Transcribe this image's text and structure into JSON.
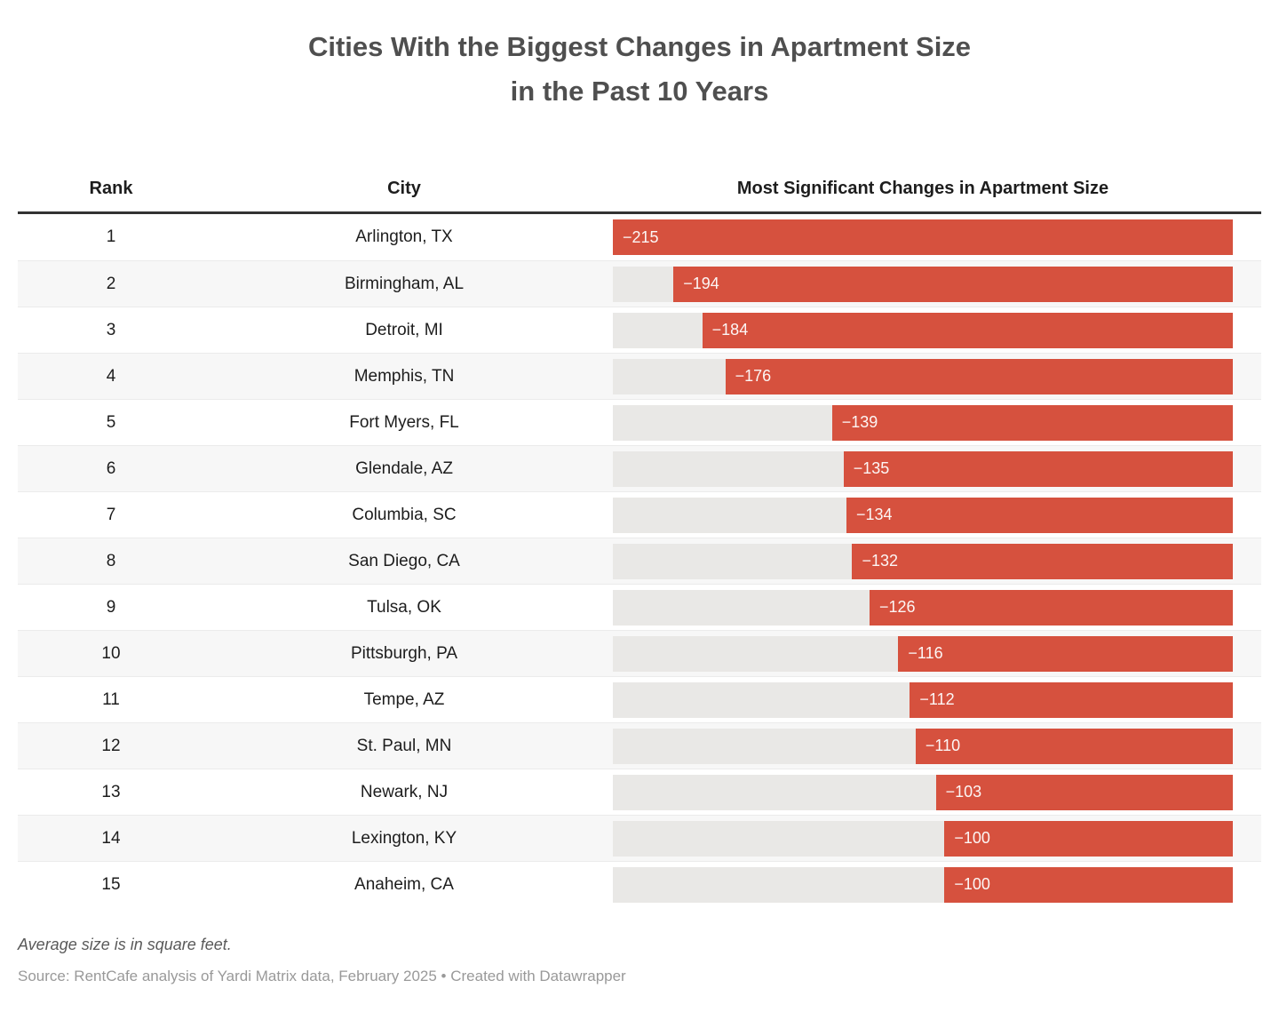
{
  "title": {
    "line1": "Cities With the Biggest Changes in Apartment Size",
    "line2": "in the Past 10 Years"
  },
  "table": {
    "columns": [
      "Rank",
      "City",
      "Most Significant Changes in Apartment Size"
    ],
    "rows": [
      {
        "rank": "1",
        "city": "Arlington, TX",
        "value": -215,
        "label": "−215"
      },
      {
        "rank": "2",
        "city": "Birmingham, AL",
        "value": -194,
        "label": "−194"
      },
      {
        "rank": "3",
        "city": "Detroit, MI",
        "value": -184,
        "label": "−184"
      },
      {
        "rank": "4",
        "city": "Memphis, TN",
        "value": -176,
        "label": "−176"
      },
      {
        "rank": "5",
        "city": "Fort Myers, FL",
        "value": -139,
        "label": "−139"
      },
      {
        "rank": "6",
        "city": "Glendale, AZ",
        "value": -135,
        "label": "−135"
      },
      {
        "rank": "7",
        "city": "Columbia, SC",
        "value": -134,
        "label": "−134"
      },
      {
        "rank": "8",
        "city": "San Diego, CA",
        "value": -132,
        "label": "−132"
      },
      {
        "rank": "9",
        "city": "Tulsa, OK",
        "value": -126,
        "label": "−126"
      },
      {
        "rank": "10",
        "city": "Pittsburgh, PA",
        "value": -116,
        "label": "−116"
      },
      {
        "rank": "11",
        "city": "Tempe, AZ",
        "value": -112,
        "label": "−112"
      },
      {
        "rank": "12",
        "city": "St. Paul, MN",
        "value": -110,
        "label": "−110"
      },
      {
        "rank": "13",
        "city": "Newark, NJ",
        "value": -103,
        "label": "−103"
      },
      {
        "rank": "14",
        "city": "Lexington, KY",
        "value": -100,
        "label": "−100"
      },
      {
        "rank": "15",
        "city": "Anaheim, CA",
        "value": -100,
        "label": "−100"
      }
    ]
  },
  "chart_data": {
    "type": "bar",
    "orientation": "horizontal",
    "bar_anchor": "right",
    "title": "Cities With the Biggest Changes in Apartment Size in the Past 10 Years",
    "categories": [
      "Arlington, TX",
      "Birmingham, AL",
      "Detroit, MI",
      "Memphis, TN",
      "Fort Myers, FL",
      "Glendale, AZ",
      "Columbia, SC",
      "San Diego, CA",
      "Tulsa, OK",
      "Pittsburgh, PA",
      "Tempe, AZ",
      "St. Paul, MN",
      "Newark, NJ",
      "Lexington, KY",
      "Anaheim, CA"
    ],
    "values": [
      -215,
      -194,
      -184,
      -176,
      -139,
      -135,
      -134,
      -132,
      -126,
      -116,
      -112,
      -110,
      -103,
      -100,
      -100
    ],
    "value_labels": [
      "−215",
      "−194",
      "−184",
      "−176",
      "−139",
      "−135",
      "−134",
      "−132",
      "−126",
      "−116",
      "−112",
      "−110",
      "−103",
      "−100",
      "−100"
    ],
    "xlim": [
      -215,
      0
    ],
    "grid": false,
    "legend": "none",
    "units": "square feet",
    "note": "Average size is in square feet.",
    "source": "Source: RentCafe analysis of Yardi Matrix data, February 2025 • Created with Datawrapper"
  },
  "footer": {
    "note": "Average size is in square feet.",
    "source": "Source: RentCafe analysis of Yardi Matrix data, February 2025 • Created with Datawrapper"
  },
  "colors": {
    "bar": "#d6513e",
    "track": "#e9e8e6",
    "stripe": "#f7f7f7",
    "header-border": "#333333",
    "row-border": "#ebebeb",
    "title-text": "#4f4f4f",
    "body-text": "#1d1d1d",
    "note-text": "#5a5a5a",
    "source-text": "#999999",
    "bar-label": "#ffffff"
  }
}
